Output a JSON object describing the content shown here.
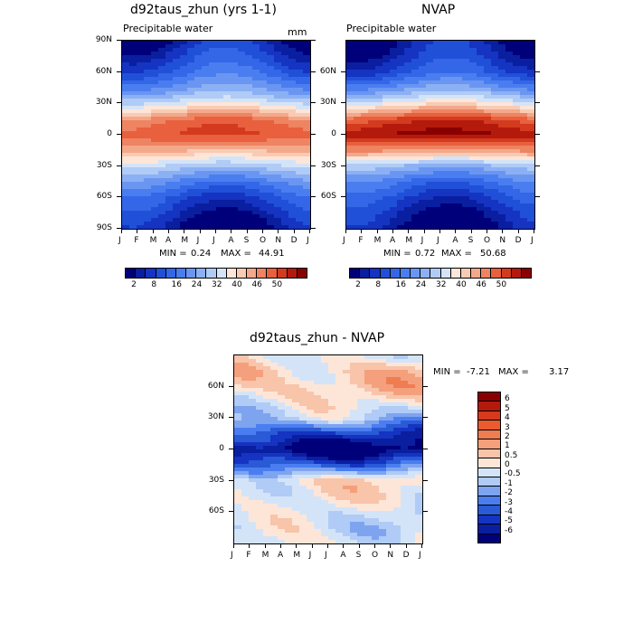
{
  "panels": [
    {
      "title": "d92taus_zhun (yrs 1-1)",
      "subtitle": "Precipitable water",
      "units": "mm",
      "min_label": "MIN =",
      "min_value": "0.24",
      "max_label": "MAX =",
      "max_value": "44.91"
    },
    {
      "title": "NVAP",
      "subtitle": "Precipitable water",
      "units": "",
      "min_label": "MIN =",
      "min_value": "0.72",
      "max_label": "MAX =",
      "max_value": "50.68"
    },
    {
      "title": "d92taus_zhun - NVAP",
      "subtitle": "",
      "units": "",
      "min_label": "MIN =",
      "min_value": "-7.21",
      "max_label": "MAX =",
      "max_value": "3.17"
    }
  ],
  "colorbar_main": {
    "labels": [
      "2",
      "8",
      "16",
      "24",
      "32",
      "40",
      "46",
      "50"
    ],
    "colors": [
      "#00007a",
      "#0a1ea0",
      "#1534c2",
      "#2050d8",
      "#3466e8",
      "#4a7ef0",
      "#6a96f2",
      "#8cb0f4",
      "#b0cbf6",
      "#d4e4f8",
      "#fde6d8",
      "#f9cbb4",
      "#f4a88a",
      "#ee8462",
      "#e8603e",
      "#d43a1e",
      "#b41a0c",
      "#8a0000"
    ]
  },
  "colorbar_diff": {
    "labels": [
      "6",
      "5",
      "4",
      "3",
      "2",
      "1",
      "0.5",
      "0",
      "-0.5",
      "-1",
      "-2",
      "-3",
      "-4",
      "-5",
      "-6"
    ],
    "colors": [
      "#8a0000",
      "#b41a0c",
      "#d43a1e",
      "#ec5a30",
      "#f07c52",
      "#f4a07c",
      "#f8c4aa",
      "#fde6d8",
      "#d4e4f8",
      "#b0cbf6",
      "#7ea4f0",
      "#4a7ef0",
      "#2a5ad6",
      "#1534c2",
      "#0a1ea0",
      "#00007a"
    ]
  },
  "axes": {
    "month_ticks": [
      "J",
      "F",
      "M",
      "A",
      "M",
      "J",
      "J",
      "A",
      "S",
      "O",
      "N",
      "D",
      "J"
    ],
    "lat_ticks_full": [
      "90N",
      "60N",
      "30N",
      "0",
      "30S",
      "60S",
      "90S"
    ],
    "lat_ticks_inner": [
      "60N",
      "30N",
      "0",
      "30S",
      "60S"
    ]
  },
  "chart_data": [
    {
      "type": "heatmap",
      "title": "d92taus_zhun (yrs 1-1)",
      "subtitle": "Precipitable water",
      "units": "mm",
      "x": [
        "J",
        "F",
        "M",
        "A",
        "M",
        "J",
        "J",
        "A",
        "S",
        "O",
        "N",
        "D",
        "J"
      ],
      "y_range": [
        -90,
        90
      ],
      "min": 0.24,
      "max": 44.91,
      "y_lat_profile": [
        -90,
        -75,
        -60,
        -45,
        -30,
        -15,
        0,
        15,
        30,
        45,
        60,
        75,
        90
      ],
      "values_annual_approx": [
        2,
        6,
        10,
        16,
        24,
        34,
        40,
        36,
        26,
        18,
        12,
        8,
        4
      ]
    },
    {
      "type": "heatmap",
      "title": "NVAP",
      "subtitle": "Precipitable water",
      "x": [
        "J",
        "F",
        "M",
        "A",
        "M",
        "J",
        "J",
        "A",
        "S",
        "O",
        "N",
        "D",
        "J"
      ],
      "y_range": [
        -90,
        90
      ],
      "min": 0.72,
      "max": 50.68,
      "y_lat_profile": [
        -90,
        -75,
        -60,
        -45,
        -30,
        -15,
        0,
        15,
        30,
        45,
        60,
        75,
        90
      ],
      "values_annual_approx": [
        2,
        5,
        9,
        14,
        22,
        36,
        46,
        40,
        28,
        18,
        10,
        6,
        3
      ]
    },
    {
      "type": "heatmap",
      "title": "d92taus_zhun - NVAP",
      "x": [
        "J",
        "F",
        "M",
        "A",
        "M",
        "J",
        "J",
        "A",
        "S",
        "O",
        "N",
        "D",
        "J"
      ],
      "y_range": [
        -90,
        90
      ],
      "min": -7.21,
      "max": 3.17,
      "y_lat_profile": [
        -90,
        -75,
        -60,
        -45,
        -30,
        -15,
        0,
        15,
        30,
        45,
        60,
        75,
        90
      ],
      "values_annual_approx": [
        0,
        -0.5,
        -0.5,
        0,
        0.5,
        -3,
        -6,
        -4,
        -1,
        0,
        1,
        1,
        0
      ]
    }
  ]
}
